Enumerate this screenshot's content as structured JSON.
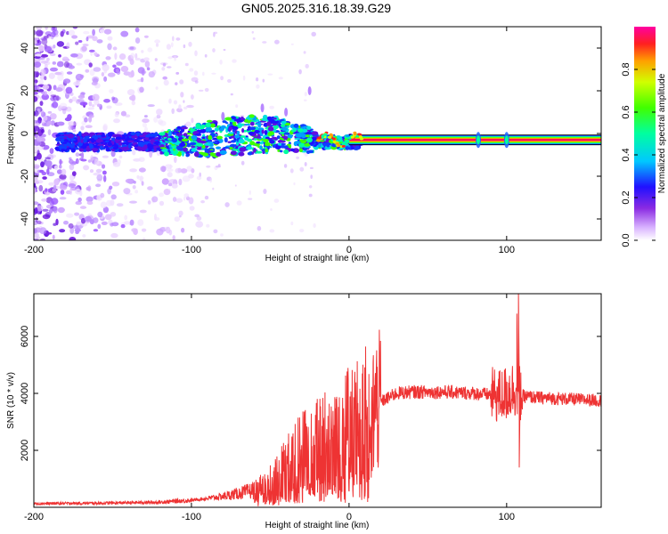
{
  "title": "GN05.2025.316.18.39.G29",
  "chart_data": [
    {
      "type": "heatmap",
      "xlabel": "Height of straight line (km)",
      "ylabel": "Frequency (Hz)",
      "xlim": [
        -200,
        160
      ],
      "ylim": [
        -50,
        50
      ],
      "xticks": [
        -200,
        -100,
        0,
        100
      ],
      "xtick_labels": [
        "-200",
        "-100",
        "0",
        "100"
      ],
      "yticks": [
        -40,
        -20,
        0,
        20,
        40
      ],
      "ytick_labels": [
        "-40",
        "-20",
        "0",
        "20",
        "40"
      ],
      "colorbar": {
        "label": "Normalized spectral amplitude",
        "range": [
          0,
          1
        ],
        "ticks": [
          0.0,
          0.2,
          0.4,
          0.6,
          0.8
        ],
        "tick_labels": [
          "0.0",
          "0.2",
          "0.4",
          "0.6",
          "0.8"
        ]
      },
      "features": {
        "noise_region_x": [
          -200,
          -115
        ],
        "signal_line_frequency_hz": -3,
        "signal_line_x": [
          5,
          160
        ],
        "burst_x": [
          100,
          101
        ]
      }
    },
    {
      "type": "line",
      "xlabel": "Height of straight line (km)",
      "ylabel": "SNR (10 * v/v)",
      "xlim": [
        -200,
        160
      ],
      "ylim": [
        0,
        7500
      ],
      "xticks": [
        -200,
        -100,
        0,
        100
      ],
      "xtick_labels": [
        "-200",
        "-100",
        "0",
        "100"
      ],
      "yticks": [
        2000,
        4000,
        6000
      ],
      "ytick_labels": [
        "2000",
        "4000",
        "6000"
      ],
      "color": "#ee3333",
      "envelope": {
        "x": [
          -200,
          -150,
          -120,
          -100,
          -80,
          -60,
          -50,
          -40,
          -30,
          -20,
          -10,
          0,
          10,
          20,
          30,
          40,
          60,
          80,
          90,
          95,
          100,
          105,
          107,
          110,
          120,
          140,
          160
        ],
        "y": [
          130,
          150,
          180,
          250,
          380,
          600,
          1000,
          1500,
          2000,
          2300,
          2700,
          2900,
          3300,
          3700,
          4000,
          4050,
          4050,
          4000,
          3950,
          3900,
          4000,
          4200,
          4100,
          3900,
          3850,
          3800,
          3750
        ]
      },
      "spikes": [
        {
          "x": 106.5,
          "y": 6800
        },
        {
          "x": 107.5,
          "y": 7500
        },
        {
          "x": 108,
          "y": 1400
        }
      ]
    }
  ]
}
